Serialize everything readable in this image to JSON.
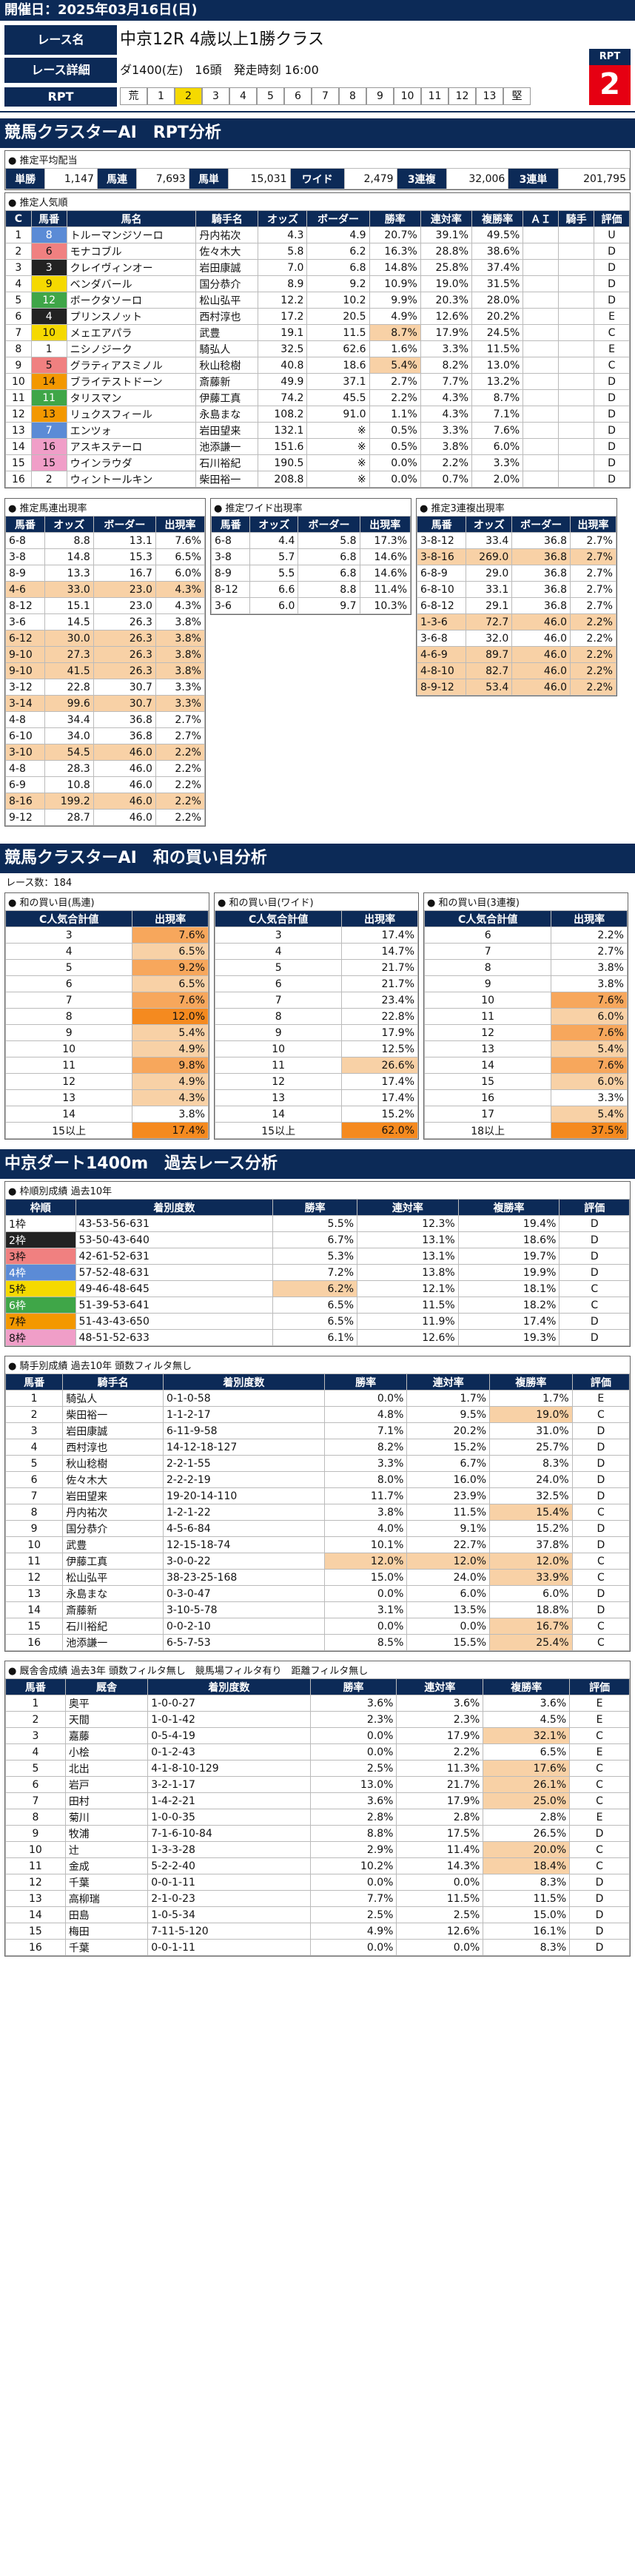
{
  "header": {
    "date_label": "開催日：2025年03月16日(日)"
  },
  "race": {
    "name_label": "レース名",
    "name": "中京12R 4歳以上1勝クラス",
    "detail_label": "レース詳細",
    "detail": "ダ1400(左)　16頭　発走時刻 16:00",
    "rpt_label": "RPT",
    "rpt_title": "RPT",
    "rpt_value": "2",
    "rpt_cells": [
      "荒",
      "1",
      "2",
      "3",
      "4",
      "5",
      "6",
      "7",
      "8",
      "9",
      "10",
      "11",
      "12",
      "13",
      "堅"
    ]
  },
  "sec1": "競馬クラスターAI　RPT分析",
  "avg": {
    "title": "● 推定平均配当",
    "items": [
      [
        "単勝",
        "1,147"
      ],
      [
        "馬連",
        "7,693"
      ],
      [
        "馬単",
        "15,031"
      ],
      [
        "ワイド",
        "2,479"
      ],
      [
        "3連複",
        "32,006"
      ],
      [
        "3連単",
        "201,795"
      ]
    ]
  },
  "pop": {
    "title": "● 推定人気順",
    "headers": [
      "C",
      "馬番",
      "馬名",
      "騎手名",
      "オッズ",
      "ボーダー",
      "勝率",
      "連対率",
      "複勝率",
      "ＡＩ",
      "騎手",
      "評価"
    ],
    "rows": [
      [
        "1",
        "8",
        "トルーマンジソーロ",
        "丹内祐次",
        "4.3",
        "4.9",
        "20.7%",
        "39.1%",
        "49.5%",
        "",
        "",
        "U"
      ],
      [
        "2",
        "6",
        "モナコブル",
        "佐々木大",
        "5.8",
        "6.2",
        "16.3%",
        "28.8%",
        "38.6%",
        "",
        "",
        "D"
      ],
      [
        "3",
        "3",
        "クレイヴィンオー",
        "岩田康誠",
        "7.0",
        "6.8",
        "14.8%",
        "25.8%",
        "37.4%",
        "",
        "",
        "D"
      ],
      [
        "4",
        "9",
        "ベンダバール",
        "国分恭介",
        "8.9",
        "9.2",
        "10.9%",
        "19.0%",
        "31.5%",
        "",
        "",
        "D"
      ],
      [
        "5",
        "12",
        "ボークタソーロ",
        "松山弘平",
        "12.2",
        "10.2",
        "9.9%",
        "20.3%",
        "28.0%",
        "",
        "",
        "D"
      ],
      [
        "6",
        "4",
        "プリンスノット",
        "西村淳也",
        "17.2",
        "20.5",
        "4.9%",
        "12.6%",
        "20.2%",
        "",
        "",
        "E"
      ],
      [
        "7",
        "10",
        "メェエアパラ",
        "武豊",
        "19.1",
        "11.5",
        "8.7%",
        "17.9%",
        "24.5%",
        "",
        "",
        "C"
      ],
      [
        "8",
        "1",
        "ニシノジーク",
        "騎弘人",
        "32.5",
        "62.6",
        "1.6%",
        "3.3%",
        "11.5%",
        "",
        "",
        "E"
      ],
      [
        "9",
        "5",
        "グラティアスミノル",
        "秋山稔樹",
        "40.8",
        "18.6",
        "5.4%",
        "8.2%",
        "13.0%",
        "",
        "",
        "C"
      ],
      [
        "10",
        "14",
        "ブライテストドーン",
        "斎藤新",
        "49.9",
        "37.1",
        "2.7%",
        "7.7%",
        "13.2%",
        "",
        "",
        "D"
      ],
      [
        "11",
        "11",
        "タリスマン",
        "伊藤工真",
        "74.2",
        "45.5",
        "2.2%",
        "4.3%",
        "8.7%",
        "",
        "",
        "D"
      ],
      [
        "12",
        "13",
        "リュクスフィール",
        "永島まな",
        "108.2",
        "91.0",
        "1.1%",
        "4.3%",
        "7.1%",
        "",
        "",
        "D"
      ],
      [
        "13",
        "7",
        "エンツォ",
        "岩田望来",
        "132.1",
        "※",
        "0.5%",
        "3.3%",
        "7.6%",
        "",
        "",
        "D"
      ],
      [
        "14",
        "16",
        "アスキステーロ",
        "池添謙一",
        "151.6",
        "※",
        "0.5%",
        "3.8%",
        "6.0%",
        "",
        "",
        "D"
      ],
      [
        "15",
        "15",
        "ウインラウダ",
        "石川裕紀",
        "190.5",
        "※",
        "0.0%",
        "2.2%",
        "3.3%",
        "",
        "",
        "D"
      ],
      [
        "16",
        "2",
        "ウィントールキン",
        "柴田裕一",
        "208.8",
        "※",
        "0.0%",
        "0.7%",
        "2.0%",
        "",
        "",
        "D"
      ]
    ]
  },
  "umaren": {
    "title": "● 推定馬連出現率",
    "headers": [
      "馬番",
      "オッズ",
      "ボーダー",
      "出現率"
    ],
    "rows": [
      [
        "6-8",
        "8.8",
        "13.1",
        "7.6%"
      ],
      [
        "3-8",
        "14.8",
        "15.3",
        "6.5%"
      ],
      [
        "8-9",
        "13.3",
        "16.7",
        "6.0%"
      ],
      [
        "4-6",
        "33.0",
        "23.0",
        "4.3%"
      ],
      [
        "8-12",
        "15.1",
        "23.0",
        "4.3%"
      ],
      [
        "3-6",
        "14.5",
        "26.3",
        "3.8%"
      ],
      [
        "6-12",
        "30.0",
        "26.3",
        "3.8%"
      ],
      [
        "9-10",
        "27.3",
        "26.3",
        "3.8%"
      ],
      [
        "9-10",
        "41.5",
        "26.3",
        "3.8%"
      ],
      [
        "3-12",
        "22.8",
        "30.7",
        "3.3%"
      ],
      [
        "3-14",
        "99.6",
        "30.7",
        "3.3%"
      ],
      [
        "4-8",
        "34.4",
        "36.8",
        "2.7%"
      ],
      [
        "6-10",
        "34.0",
        "36.8",
        "2.7%"
      ],
      [
        "3-10",
        "54.5",
        "46.0",
        "2.2%"
      ],
      [
        "4-8",
        "28.3",
        "46.0",
        "2.2%"
      ],
      [
        "6-9",
        "10.8",
        "46.0",
        "2.2%"
      ],
      [
        "8-16",
        "199.2",
        "46.0",
        "2.2%"
      ],
      [
        "9-12",
        "28.7",
        "46.0",
        "2.2%"
      ]
    ]
  },
  "wide": {
    "title": "● 推定ワイド出現率",
    "headers": [
      "馬番",
      "オッズ",
      "ボーダー",
      "出現率"
    ],
    "rows": [
      [
        "6-8",
        "4.4",
        "5.8",
        "17.3%"
      ],
      [
        "3-8",
        "5.7",
        "6.8",
        "14.6%"
      ],
      [
        "8-9",
        "5.5",
        "6.8",
        "14.6%"
      ],
      [
        "8-12",
        "6.6",
        "8.8",
        "11.4%"
      ],
      [
        "3-6",
        "6.0",
        "9.7",
        "10.3%"
      ]
    ]
  },
  "trio": {
    "title": "● 推定3連複出現率",
    "headers": [
      "馬番",
      "オッズ",
      "ボーダー",
      "出現率"
    ],
    "rows": [
      [
        "3-8-12",
        "33.4",
        "36.8",
        "2.7%"
      ],
      [
        "3-8-16",
        "269.0",
        "36.8",
        "2.7%"
      ],
      [
        "6-8-9",
        "29.0",
        "36.8",
        "2.7%"
      ],
      [
        "6-8-10",
        "33.1",
        "36.8",
        "2.7%"
      ],
      [
        "6-8-12",
        "29.1",
        "36.8",
        "2.7%"
      ],
      [
        "1-3-6",
        "72.7",
        "46.0",
        "2.2%"
      ],
      [
        "3-6-8",
        "32.0",
        "46.0",
        "2.2%"
      ],
      [
        "4-6-9",
        "89.7",
        "46.0",
        "2.2%"
      ],
      [
        "4-8-10",
        "82.7",
        "46.0",
        "2.2%"
      ],
      [
        "8-9-12",
        "53.4",
        "46.0",
        "2.2%"
      ]
    ]
  },
  "sec2": "競馬クラスターAI　和の買い目分析",
  "race_count": "レース数：184",
  "sum_umaren": {
    "title": "● 和の買い目(馬連)",
    "h1": "C人気合計値",
    "h2": "出現率",
    "rows": [
      [
        "3",
        "7.6%"
      ],
      [
        "4",
        "6.5%"
      ],
      [
        "5",
        "9.2%"
      ],
      [
        "6",
        "6.5%"
      ],
      [
        "7",
        "7.6%"
      ],
      [
        "8",
        "12.0%"
      ],
      [
        "9",
        "5.4%"
      ],
      [
        "10",
        "4.9%"
      ],
      [
        "11",
        "9.8%"
      ],
      [
        "12",
        "4.9%"
      ],
      [
        "13",
        "4.3%"
      ],
      [
        "14",
        "3.8%"
      ],
      [
        "15以上",
        "17.4%"
      ]
    ]
  },
  "sum_wide": {
    "title": "● 和の買い目(ワイド)",
    "h1": "C人気合計値",
    "h2": "出現率",
    "rows": [
      [
        "3",
        "17.4%"
      ],
      [
        "4",
        "14.7%"
      ],
      [
        "5",
        "21.7%"
      ],
      [
        "6",
        "21.7%"
      ],
      [
        "7",
        "23.4%"
      ],
      [
        "8",
        "22.8%"
      ],
      [
        "9",
        "17.9%"
      ],
      [
        "10",
        "12.5%"
      ],
      [
        "11",
        "26.6%"
      ],
      [
        "12",
        "17.4%"
      ],
      [
        "13",
        "17.4%"
      ],
      [
        "14",
        "15.2%"
      ],
      [
        "15以上",
        "62.0%"
      ]
    ]
  },
  "sum_trio": {
    "title": "● 和の買い目(3連複)",
    "h1": "C人気合計値",
    "h2": "出現率",
    "rows": [
      [
        "6",
        "2.2%"
      ],
      [
        "7",
        "2.7%"
      ],
      [
        "8",
        "3.8%"
      ],
      [
        "9",
        "3.8%"
      ],
      [
        "10",
        "7.6%"
      ],
      [
        "11",
        "6.0%"
      ],
      [
        "12",
        "7.6%"
      ],
      [
        "13",
        "5.4%"
      ],
      [
        "14",
        "7.6%"
      ],
      [
        "15",
        "6.0%"
      ],
      [
        "16",
        "3.3%"
      ],
      [
        "17",
        "5.4%"
      ],
      [
        "18以上",
        "37.5%"
      ]
    ]
  },
  "sec3": "中京ダート1400m　過去レース分析",
  "waku": {
    "title": "● 枠順別成績 過去10年",
    "headers": [
      "枠順",
      "着別度数",
      "勝率",
      "連対率",
      "複勝率",
      "評価"
    ],
    "rows": [
      [
        "1枠",
        "43-53-56-631",
        "5.5%",
        "12.3%",
        "19.4%",
        "D"
      ],
      [
        "2枠",
        "53-50-43-640",
        "6.7%",
        "13.1%",
        "18.6%",
        "D"
      ],
      [
        "3枠",
        "42-61-52-631",
        "5.3%",
        "13.1%",
        "19.7%",
        "D"
      ],
      [
        "4枠",
        "57-52-48-631",
        "7.2%",
        "13.8%",
        "19.9%",
        "D"
      ],
      [
        "5枠",
        "49-46-48-645",
        "6.2%",
        "12.1%",
        "18.1%",
        "C"
      ],
      [
        "6枠",
        "51-39-53-641",
        "6.5%",
        "11.5%",
        "18.2%",
        "C"
      ],
      [
        "7枠",
        "51-43-43-650",
        "6.5%",
        "11.9%",
        "17.4%",
        "D"
      ],
      [
        "8枠",
        "48-51-52-633",
        "6.1%",
        "12.6%",
        "19.3%",
        "D"
      ]
    ]
  },
  "jockey": {
    "title": "● 騎手別成績 過去10年 頭数フィルタ無し",
    "headers": [
      "馬番",
      "騎手名",
      "着別度数",
      "勝率",
      "連対率",
      "複勝率",
      "評価"
    ],
    "rows": [
      [
        "1",
        "騎弘人",
        "0-1-0-58",
        "0.0%",
        "1.7%",
        "1.7%",
        "E"
      ],
      [
        "2",
        "柴田裕一",
        "1-1-2-17",
        "4.8%",
        "9.5%",
        "19.0%",
        "C"
      ],
      [
        "3",
        "岩田康誠",
        "6-11-9-58",
        "7.1%",
        "20.2%",
        "31.0%",
        "D"
      ],
      [
        "4",
        "西村淳也",
        "14-12-18-127",
        "8.2%",
        "15.2%",
        "25.7%",
        "D"
      ],
      [
        "5",
        "秋山稔樹",
        "2-2-1-55",
        "3.3%",
        "6.7%",
        "8.3%",
        "D"
      ],
      [
        "6",
        "佐々木大",
        "2-2-2-19",
        "8.0%",
        "16.0%",
        "24.0%",
        "D"
      ],
      [
        "7",
        "岩田望来",
        "19-20-14-110",
        "11.7%",
        "23.9%",
        "32.5%",
        "D"
      ],
      [
        "8",
        "丹内祐次",
        "1-2-1-22",
        "3.8%",
        "11.5%",
        "15.4%",
        "C"
      ],
      [
        "9",
        "国分恭介",
        "4-5-6-84",
        "4.0%",
        "9.1%",
        "15.2%",
        "D"
      ],
      [
        "10",
        "武豊",
        "12-15-18-74",
        "10.1%",
        "22.7%",
        "37.8%",
        "D"
      ],
      [
        "11",
        "伊藤工真",
        "3-0-0-22",
        "12.0%",
        "12.0%",
        "12.0%",
        "C"
      ],
      [
        "12",
        "松山弘平",
        "38-23-25-168",
        "15.0%",
        "24.0%",
        "33.9%",
        "C"
      ],
      [
        "13",
        "永島まな",
        "0-3-0-47",
        "0.0%",
        "6.0%",
        "6.0%",
        "D"
      ],
      [
        "14",
        "斎藤新",
        "3-10-5-78",
        "3.1%",
        "13.5%",
        "18.8%",
        "D"
      ],
      [
        "15",
        "石川裕紀",
        "0-0-2-10",
        "0.0%",
        "0.0%",
        "16.7%",
        "C"
      ],
      [
        "16",
        "池添謙一",
        "6-5-7-53",
        "8.5%",
        "15.5%",
        "25.4%",
        "C"
      ]
    ]
  },
  "sire": {
    "title": "● 厩舎舎成績 過去3年 頭数フィルタ無し　競馬場フィルタ有り　距離フィルタ無し",
    "headers": [
      "馬番",
      "厩舎",
      "着別度数",
      "勝率",
      "連対率",
      "複勝率",
      "評価"
    ],
    "rows": [
      [
        "1",
        "奥平",
        "1-0-0-27",
        "3.6%",
        "3.6%",
        "3.6%",
        "E"
      ],
      [
        "2",
        "天間",
        "1-0-1-42",
        "2.3%",
        "2.3%",
        "4.5%",
        "E"
      ],
      [
        "3",
        "嘉藤",
        "0-5-4-19",
        "0.0%",
        "17.9%",
        "32.1%",
        "C"
      ],
      [
        "4",
        "小桧",
        "0-1-2-43",
        "0.0%",
        "2.2%",
        "6.5%",
        "E"
      ],
      [
        "5",
        "北出",
        "4-1-8-10-129",
        "2.5%",
        "11.3%",
        "17.6%",
        "C"
      ],
      [
        "6",
        "岩戸",
        "3-2-1-17",
        "13.0%",
        "21.7%",
        "26.1%",
        "C"
      ],
      [
        "7",
        "田村",
        "1-4-2-21",
        "3.6%",
        "17.9%",
        "25.0%",
        "C"
      ],
      [
        "8",
        "菊川",
        "1-0-0-35",
        "2.8%",
        "2.8%",
        "2.8%",
        "E"
      ],
      [
        "9",
        "牧浦",
        "7-1-6-10-84",
        "8.8%",
        "17.5%",
        "26.5%",
        "D"
      ],
      [
        "10",
        "辻",
        "1-3-3-28",
        "2.9%",
        "11.4%",
        "20.0%",
        "C"
      ],
      [
        "11",
        "金成",
        "5-2-2-40",
        "10.2%",
        "14.3%",
        "18.4%",
        "C"
      ],
      [
        "12",
        "千葉",
        "0-0-1-11",
        "0.0%",
        "0.0%",
        "8.3%",
        "D"
      ],
      [
        "13",
        "高柳瑞",
        "2-1-0-23",
        "7.7%",
        "11.5%",
        "11.5%",
        "D"
      ],
      [
        "14",
        "田島",
        "1-0-5-34",
        "2.5%",
        "2.5%",
        "15.0%",
        "D"
      ],
      [
        "15",
        "梅田",
        "7-11-5-120",
        "4.9%",
        "12.6%",
        "16.1%",
        "D"
      ],
      [
        "16",
        "千葉",
        "0-0-1-11",
        "0.0%",
        "0.0%",
        "8.3%",
        "D"
      ]
    ]
  },
  "colors": {
    "navy": "#0c2a57",
    "accent": "#e60012",
    "highlight": "#f5d900"
  }
}
